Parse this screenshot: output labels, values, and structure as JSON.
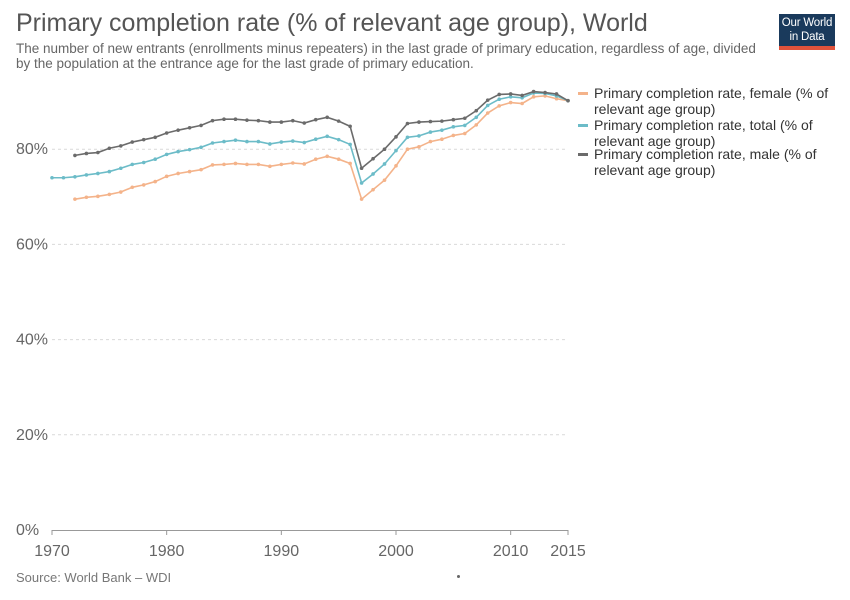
{
  "header": {
    "title": "Primary completion rate (% of relevant age group), World",
    "subtitle": "The number of new entrants (enrollments minus repeaters) in the last grade of primary education, regardless of age, divided by the population at the entrance age for the last grade of primary education."
  },
  "logo": {
    "line1": "Our World",
    "line2": "in Data"
  },
  "footer": {
    "source": "Source: World Bank – WDI"
  },
  "colors": {
    "female": "#f4b38a",
    "total": "#6cbcc8",
    "male": "#6b6b6b",
    "grid": "#d9d9d9",
    "logo_bg": "#1a3a5c",
    "logo_accent": "#e0523b"
  },
  "chart_data": {
    "type": "line",
    "title": "Primary completion rate (% of relevant age group), World",
    "xlabel": "",
    "ylabel": "",
    "xlim": [
      1970,
      2015
    ],
    "ylim": [
      0,
      100
    ],
    "x_ticks": [
      1970,
      1980,
      1990,
      2000,
      2010,
      2015
    ],
    "y_ticks": [
      0,
      20,
      40,
      60,
      80
    ],
    "y_tick_labels": [
      "0%",
      "20%",
      "40%",
      "60%",
      "80%"
    ],
    "grid": "horizontal-dashed",
    "legend": "right",
    "x": [
      1970,
      1971,
      1972,
      1973,
      1974,
      1975,
      1976,
      1977,
      1978,
      1979,
      1980,
      1981,
      1982,
      1983,
      1984,
      1985,
      1986,
      1987,
      1988,
      1989,
      1990,
      1991,
      1992,
      1993,
      1994,
      1995,
      1996,
      1997,
      1998,
      1999,
      2000,
      2001,
      2002,
      2003,
      2004,
      2005,
      2006,
      2007,
      2008,
      2009,
      2010,
      2011,
      2012,
      2013,
      2014,
      2015
    ],
    "series": [
      {
        "key": "female",
        "name": "Primary completion rate, female (% of relevant age group)",
        "values": [
          null,
          null,
          69.5,
          69.9,
          70.1,
          70.5,
          71.0,
          72.0,
          72.5,
          73.2,
          74.3,
          74.9,
          75.3,
          75.7,
          76.7,
          76.8,
          77.0,
          76.8,
          76.8,
          76.4,
          76.8,
          77.1,
          76.9,
          77.9,
          78.5,
          77.9,
          77.0,
          69.5,
          71.5,
          73.5,
          76.5,
          80.0,
          80.5,
          81.6,
          82.1,
          82.9,
          83.3,
          85.1,
          87.6,
          89.1,
          89.8,
          89.6,
          91.0,
          91.2,
          90.6,
          90.2
        ]
      },
      {
        "key": "total",
        "name": "Primary completion rate, total (% of relevant age group)",
        "values": [
          74.0,
          74.0,
          74.2,
          74.6,
          74.9,
          75.3,
          76.0,
          76.8,
          77.2,
          77.9,
          78.9,
          79.5,
          79.9,
          80.4,
          81.3,
          81.6,
          81.9,
          81.6,
          81.6,
          81.1,
          81.5,
          81.7,
          81.4,
          82.1,
          82.7,
          82.0,
          81.0,
          72.9,
          74.8,
          76.9,
          79.7,
          82.5,
          82.8,
          83.6,
          84.0,
          84.7,
          85.0,
          86.7,
          89.2,
          90.5,
          91.0,
          90.8,
          91.8,
          91.7,
          91.2,
          90.2
        ]
      },
      {
        "key": "male",
        "name": "Primary completion rate, male (% of relevant age group)",
        "values": [
          null,
          null,
          78.7,
          79.1,
          79.3,
          80.2,
          80.7,
          81.5,
          82.0,
          82.5,
          83.4,
          84.0,
          84.5,
          85.0,
          86.0,
          86.3,
          86.3,
          86.1,
          86.0,
          85.7,
          85.7,
          86.0,
          85.5,
          86.2,
          86.7,
          85.9,
          84.8,
          76.0,
          78.0,
          80.0,
          82.6,
          85.4,
          85.7,
          85.8,
          85.9,
          86.2,
          86.5,
          88.1,
          90.3,
          91.5,
          91.6,
          91.3,
          92.1,
          91.9,
          91.6,
          90.2
        ]
      }
    ]
  },
  "legend_items": [
    "Primary completion rate, female (% of relevant age group)",
    "Primary completion rate, total (% of relevant age group)",
    "Primary completion rate, male (% of relevant age group)"
  ]
}
